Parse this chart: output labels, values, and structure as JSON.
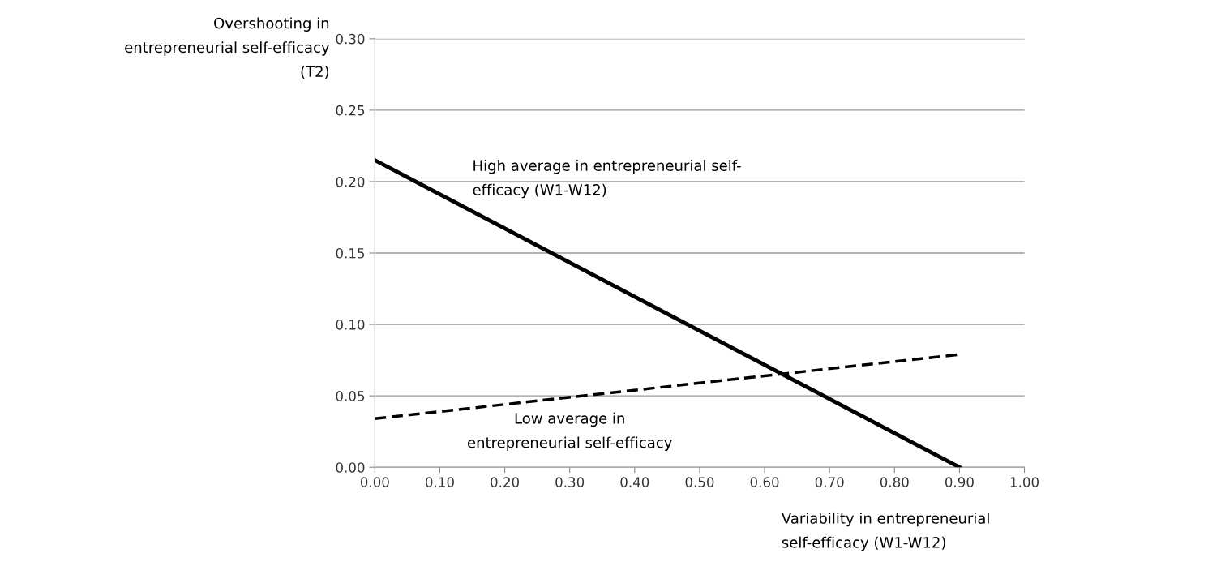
{
  "chart_data": {
    "type": "line",
    "xlabel": "Variability in entrepreneurial\nself-efficacy (W1-W12)",
    "ylabel": "Overshooting in\nentrepreneurial self-efficacy\n(T2)",
    "x": [
      0.0,
      0.9
    ],
    "series": [
      {
        "name": "High average in entrepreneurial self-\nefficacy (W1-W12)",
        "color": "#000000",
        "line_style": "solid",
        "values": [
          0.215,
          0.0
        ]
      },
      {
        "name": "Low average in\nentrepreneurial self-efficacy",
        "color": "#000000",
        "line_style": "dashed",
        "values": [
          0.034,
          0.079
        ]
      }
    ],
    "xlim": [
      0.0,
      1.0
    ],
    "ylim": [
      0.0,
      0.3
    ],
    "xticks": [
      {
        "value": 0,
        "label": "0.00"
      },
      {
        "value": 0.1,
        "label": "0.10"
      },
      {
        "value": 0.2,
        "label": "0.20"
      },
      {
        "value": 0.3,
        "label": "0.30"
      },
      {
        "value": 0.4,
        "label": "0.40"
      },
      {
        "value": 0.5,
        "label": "0.50"
      },
      {
        "value": 0.6,
        "label": "0.60"
      },
      {
        "value": 0.7,
        "label": "0.70"
      },
      {
        "value": 0.8,
        "label": "0.80"
      },
      {
        "value": 0.9,
        "label": "0.90"
      },
      {
        "value": 1.0,
        "label": "1.00"
      }
    ],
    "yticks": [
      {
        "value": 0,
        "label": "0.00"
      },
      {
        "value": 0.05,
        "label": "0.05"
      },
      {
        "value": 0.1,
        "label": "0.10"
      },
      {
        "value": 0.15,
        "label": "0.15"
      },
      {
        "value": 0.2,
        "label": "0.20"
      },
      {
        "value": 0.25,
        "label": "0.25"
      },
      {
        "value": 0.3,
        "label": "0.30"
      }
    ],
    "grid": "y",
    "marker": "none",
    "legend": false
  }
}
